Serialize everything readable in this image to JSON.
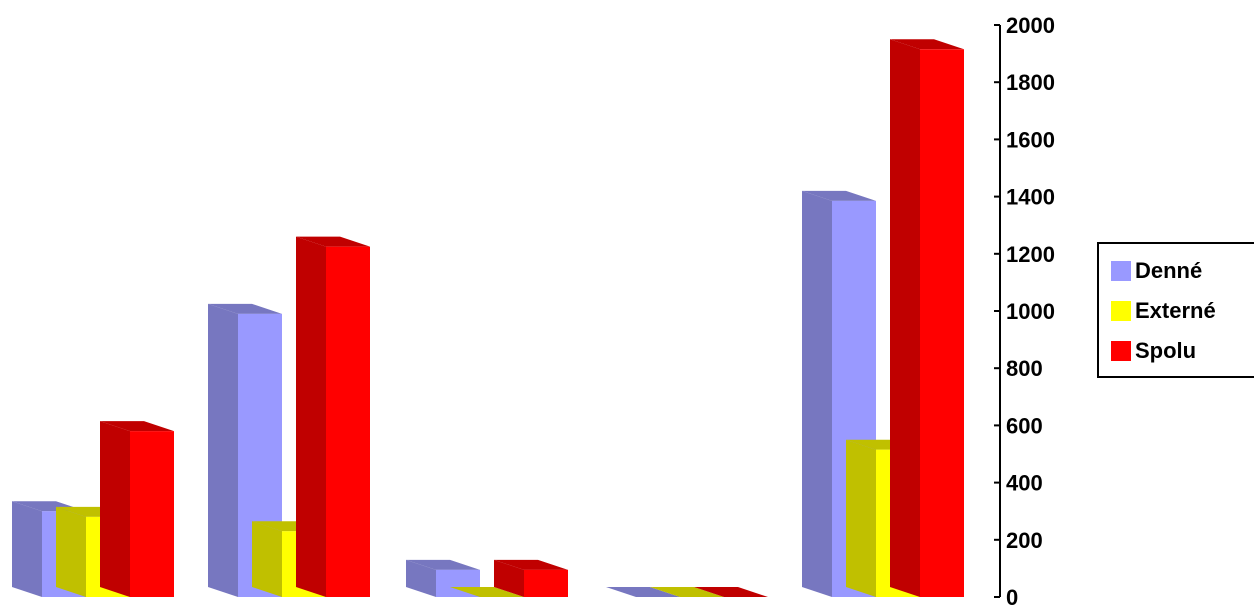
{
  "chart_data": {
    "type": "bar",
    "title": "",
    "xlabel": "",
    "ylabel": "",
    "categories": [
      "",
      "",
      "",
      "",
      ""
    ],
    "ylim": [
      0,
      2000
    ],
    "yticks": [
      "0",
      "200",
      "400",
      "600",
      "800",
      "1000",
      "1200",
      "1400",
      "1600",
      "1800",
      "2000"
    ],
    "legend_position": "right",
    "grid": false,
    "series": [
      {
        "name": "Denné",
        "values": [
          300,
          990,
          95,
          0,
          1385
        ],
        "color": "#9999ff",
        "side_color": "#7777c0"
      },
      {
        "name": "Externé",
        "values": [
          280,
          230,
          0,
          0,
          515
        ],
        "color": "#ffff00",
        "side_color": "#c0c000"
      },
      {
        "name": "Spolu",
        "values": [
          580,
          1225,
          95,
          0,
          1915
        ],
        "color": "#ff0000",
        "side_color": "#c00000"
      }
    ]
  },
  "legend": {
    "items": [
      {
        "label": "Denné",
        "color": "#9999ff"
      },
      {
        "label": "Externé",
        "color": "#ffff00"
      },
      {
        "label": "Spolu",
        "color": "#ff0000"
      }
    ]
  }
}
